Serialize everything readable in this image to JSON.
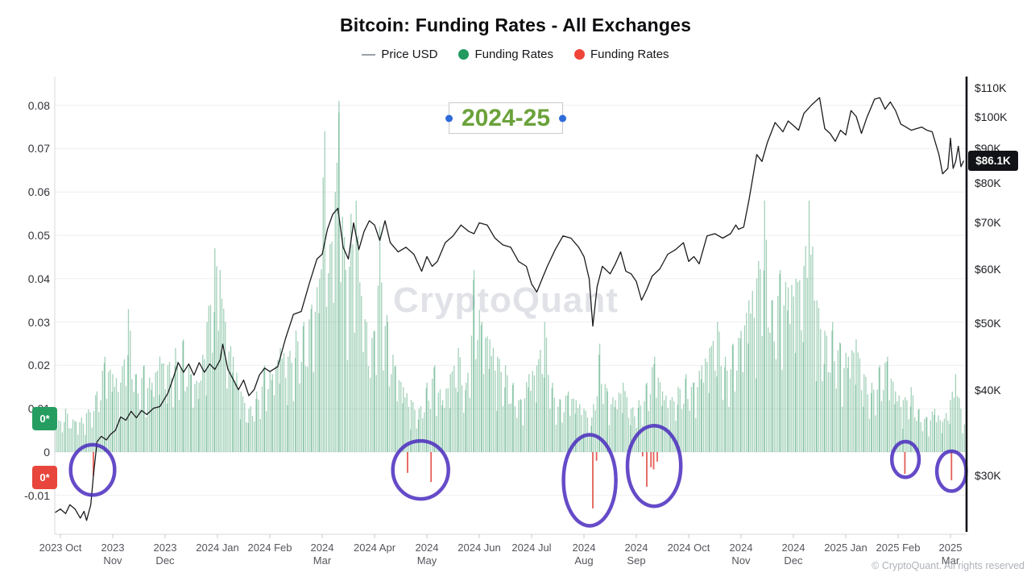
{
  "title": "Bitcoin: Funding Rates - All Exchanges",
  "legend": {
    "price": {
      "label": "Price USD",
      "color": "#9aa0a6"
    },
    "funding_pos": {
      "label": "Funding Rates",
      "color": "#21995f"
    },
    "funding_neg": {
      "label": "Funding Rates",
      "color": "#ef4438"
    }
  },
  "watermark": "CryptoQuant",
  "copyright": "© CryptoQuant. All rights reserved",
  "annotation": {
    "label": "2024-25",
    "text_color": "#6ba23b",
    "handle_color": "#2e6bd8"
  },
  "badges": {
    "green_axis": {
      "label": "0*",
      "color": "#259d61"
    },
    "red_axis": {
      "label": "0*",
      "color": "#e8453c"
    },
    "price": {
      "label": "$86.1K"
    }
  },
  "colors": {
    "bar_positive": "rgba(49,154,99,0.45)",
    "bar_negative": "rgba(225,77,66,0.9)",
    "price_line": "#1a1b1e",
    "ellipse": "#4a2bbe",
    "grid": "#efeff2",
    "spine": "#d9d9de",
    "axis_black": "#121316"
  },
  "chart_data": {
    "type": "mixed",
    "title": "Bitcoin: Funding Rates - All Exchanges",
    "x_unit": "months since 2023-10 tick",
    "x_tick_labels": [
      "2023 Oct",
      "2023\nNov",
      "2023\nDec",
      "2024 Jan",
      "2024 Feb",
      "2024\nMar",
      "2024 Apr",
      "2024\nMay",
      "2024 Jun",
      "2024 Jul",
      "2024\nAug",
      "2024\nSep",
      "2024 Oct",
      "2024\nNov",
      "2024\nDec",
      "2025 Jan",
      "2025 Feb",
      "2025\nMar"
    ],
    "left_axis": {
      "label": "Funding Rates",
      "ticks": [
        0.08,
        0.07,
        0.06,
        0.05,
        0.04,
        0.03,
        0.02,
        0.01,
        0,
        -0.01
      ],
      "range": [
        -0.015,
        0.0865
      ]
    },
    "right_axis": {
      "label": "Price USD",
      "scale": "log",
      "ticks_k": [
        110,
        100,
        90,
        80,
        70,
        60,
        50,
        40,
        30
      ],
      "last_value_k": 86.1
    },
    "price_usd_k": [
      [
        -0.1,
        26.5
      ],
      [
        0.0,
        26.8
      ],
      [
        0.1,
        26.4
      ],
      [
        0.18,
        27.2
      ],
      [
        0.28,
        26.8
      ],
      [
        0.38,
        26.0
      ],
      [
        0.45,
        26.6
      ],
      [
        0.5,
        25.8
      ],
      [
        0.58,
        27.2
      ],
      [
        0.63,
        30.0
      ],
      [
        0.7,
        33.6
      ],
      [
        0.78,
        34.2
      ],
      [
        0.88,
        33.8
      ],
      [
        0.95,
        34.4
      ],
      [
        1.05,
        34.9
      ],
      [
        1.15,
        36.5
      ],
      [
        1.25,
        36.1
      ],
      [
        1.35,
        37.2
      ],
      [
        1.45,
        36.4
      ],
      [
        1.55,
        37.3
      ],
      [
        1.65,
        36.8
      ],
      [
        1.78,
        37.6
      ],
      [
        1.9,
        37.8
      ],
      [
        2.05,
        39.5
      ],
      [
        2.15,
        41.5
      ],
      [
        2.25,
        43.8
      ],
      [
        2.35,
        42.4
      ],
      [
        2.45,
        43.6
      ],
      [
        2.55,
        42.0
      ],
      [
        2.65,
        43.8
      ],
      [
        2.75,
        42.4
      ],
      [
        2.85,
        43.6
      ],
      [
        2.95,
        42.8
      ],
      [
        3.05,
        44.2
      ],
      [
        3.1,
        46.6
      ],
      [
        3.2,
        42.8
      ],
      [
        3.3,
        41.4
      ],
      [
        3.4,
        40.0
      ],
      [
        3.5,
        41.3
      ],
      [
        3.6,
        39.2
      ],
      [
        3.7,
        40.0
      ],
      [
        3.8,
        42.0
      ],
      [
        3.9,
        43.0
      ],
      [
        4.0,
        42.5
      ],
      [
        4.15,
        43.2
      ],
      [
        4.3,
        47.5
      ],
      [
        4.45,
        51.5
      ],
      [
        4.6,
        52.0
      ],
      [
        4.75,
        57.0
      ],
      [
        4.9,
        62.0
      ],
      [
        5.0,
        63.0
      ],
      [
        5.1,
        68.5
      ],
      [
        5.2,
        72.0
      ],
      [
        5.3,
        73.5
      ],
      [
        5.4,
        64.5
      ],
      [
        5.5,
        62.0
      ],
      [
        5.6,
        70.0
      ],
      [
        5.7,
        64.0
      ],
      [
        5.8,
        68.0
      ],
      [
        5.9,
        70.5
      ],
      [
        6.0,
        69.5
      ],
      [
        6.1,
        66.0
      ],
      [
        6.2,
        70.5
      ],
      [
        6.3,
        65.5
      ],
      [
        6.45,
        63.5
      ],
      [
        6.6,
        64.5
      ],
      [
        6.75,
        63.0
      ],
      [
        6.9,
        59.5
      ],
      [
        7.0,
        62.5
      ],
      [
        7.1,
        60.5
      ],
      [
        7.2,
        61.5
      ],
      [
        7.35,
        65.5
      ],
      [
        7.5,
        67.0
      ],
      [
        7.65,
        69.5
      ],
      [
        7.8,
        68.0
      ],
      [
        7.9,
        67.5
      ],
      [
        8.0,
        70.0
      ],
      [
        8.15,
        69.5
      ],
      [
        8.3,
        66.5
      ],
      [
        8.45,
        65.0
      ],
      [
        8.6,
        64.5
      ],
      [
        8.75,
        61.5
      ],
      [
        8.9,
        60.5
      ],
      [
        9.0,
        57.0
      ],
      [
        9.1,
        55.5
      ],
      [
        9.2,
        58.0
      ],
      [
        9.3,
        60.5
      ],
      [
        9.45,
        64.0
      ],
      [
        9.6,
        67.0
      ],
      [
        9.75,
        66.5
      ],
      [
        9.9,
        64.5
      ],
      [
        10.0,
        62.5
      ],
      [
        10.1,
        58.0
      ],
      [
        10.17,
        49.5
      ],
      [
        10.25,
        56.5
      ],
      [
        10.35,
        60.5
      ],
      [
        10.5,
        59.0
      ],
      [
        10.6,
        61.0
      ],
      [
        10.7,
        63.5
      ],
      [
        10.8,
        59.5
      ],
      [
        10.9,
        59.0
      ],
      [
        11.0,
        57.5
      ],
      [
        11.1,
        54.0
      ],
      [
        11.2,
        56.0
      ],
      [
        11.3,
        58.5
      ],
      [
        11.45,
        60.0
      ],
      [
        11.6,
        63.0
      ],
      [
        11.75,
        64.0
      ],
      [
        11.9,
        65.5
      ],
      [
        12.0,
        61.5
      ],
      [
        12.1,
        62.5
      ],
      [
        12.2,
        61.0
      ],
      [
        12.35,
        67.0
      ],
      [
        12.5,
        67.5
      ],
      [
        12.65,
        66.5
      ],
      [
        12.8,
        67.5
      ],
      [
        12.9,
        69.5
      ],
      [
        12.95,
        68.5
      ],
      [
        13.05,
        69.0
      ],
      [
        13.15,
        75.5
      ],
      [
        13.3,
        88.0
      ],
      [
        13.4,
        86.0
      ],
      [
        13.5,
        91.5
      ],
      [
        13.65,
        98.0
      ],
      [
        13.8,
        95.0
      ],
      [
        13.9,
        98.5
      ],
      [
        14.0,
        97.0
      ],
      [
        14.1,
        95.5
      ],
      [
        14.2,
        101.0
      ],
      [
        14.35,
        104.0
      ],
      [
        14.5,
        106.5
      ],
      [
        14.6,
        96.0
      ],
      [
        14.7,
        94.5
      ],
      [
        14.8,
        92.0
      ],
      [
        14.9,
        95.5
      ],
      [
        15.0,
        94.0
      ],
      [
        15.1,
        102.0
      ],
      [
        15.2,
        100.0
      ],
      [
        15.3,
        94.5
      ],
      [
        15.4,
        99.5
      ],
      [
        15.55,
        106.0
      ],
      [
        15.65,
        106.5
      ],
      [
        15.75,
        102.5
      ],
      [
        15.85,
        105.0
      ],
      [
        15.95,
        102.0
      ],
      [
        16.05,
        97.5
      ],
      [
        16.15,
        96.5
      ],
      [
        16.25,
        95.5
      ],
      [
        16.35,
        96.0
      ],
      [
        16.45,
        96.5
      ],
      [
        16.55,
        95.5
      ],
      [
        16.65,
        95.0
      ],
      [
        16.78,
        88.0
      ],
      [
        16.85,
        82.5
      ],
      [
        16.95,
        84.0
      ],
      [
        17.0,
        93.0
      ],
      [
        17.05,
        84.0
      ],
      [
        17.1,
        86.0
      ],
      [
        17.15,
        90.5
      ],
      [
        17.2,
        84.5
      ],
      [
        17.25,
        86.1
      ]
    ],
    "funding_rate_envelope": [
      [
        -0.1,
        0.006
      ],
      [
        0.1,
        0.01
      ],
      [
        0.3,
        0.007
      ],
      [
        0.5,
        0.009
      ],
      [
        0.7,
        0.014
      ],
      [
        0.85,
        0.022
      ],
      [
        1.0,
        0.018
      ],
      [
        1.15,
        0.016
      ],
      [
        1.3,
        0.033
      ],
      [
        1.45,
        0.018
      ],
      [
        1.6,
        0.02
      ],
      [
        1.75,
        0.016
      ],
      [
        1.9,
        0.022
      ],
      [
        2.05,
        0.02
      ],
      [
        2.2,
        0.024
      ],
      [
        2.35,
        0.026
      ],
      [
        2.5,
        0.018
      ],
      [
        2.65,
        0.016
      ],
      [
        2.8,
        0.03
      ],
      [
        2.95,
        0.047
      ],
      [
        3.05,
        0.042
      ],
      [
        3.15,
        0.03
      ],
      [
        3.3,
        0.022
      ],
      [
        3.45,
        0.014
      ],
      [
        3.6,
        0.01
      ],
      [
        3.75,
        0.014
      ],
      [
        3.9,
        0.02
      ],
      [
        4.05,
        0.018
      ],
      [
        4.2,
        0.024
      ],
      [
        4.35,
        0.022
      ],
      [
        4.5,
        0.028
      ],
      [
        4.65,
        0.03
      ],
      [
        4.8,
        0.034
      ],
      [
        4.95,
        0.04
      ],
      [
        5.05,
        0.074
      ],
      [
        5.15,
        0.048
      ],
      [
        5.25,
        0.06
      ],
      [
        5.32,
        0.081
      ],
      [
        5.45,
        0.042
      ],
      [
        5.55,
        0.055
      ],
      [
        5.65,
        0.058
      ],
      [
        5.75,
        0.036
      ],
      [
        5.85,
        0.03
      ],
      [
        6.0,
        0.028
      ],
      [
        6.1,
        0.052
      ],
      [
        6.25,
        0.03
      ],
      [
        6.4,
        0.02
      ],
      [
        6.55,
        0.015
      ],
      [
        6.7,
        0.012
      ],
      [
        6.85,
        0.01
      ],
      [
        7.0,
        0.016
      ],
      [
        7.15,
        0.02
      ],
      [
        7.3,
        0.012
      ],
      [
        7.45,
        0.018
      ],
      [
        7.6,
        0.024
      ],
      [
        7.75,
        0.016
      ],
      [
        7.9,
        0.042
      ],
      [
        8.05,
        0.03
      ],
      [
        8.2,
        0.026
      ],
      [
        8.35,
        0.022
      ],
      [
        8.5,
        0.02
      ],
      [
        8.65,
        0.016
      ],
      [
        8.8,
        0.012
      ],
      [
        8.95,
        0.018
      ],
      [
        9.1,
        0.02
      ],
      [
        9.25,
        0.03
      ],
      [
        9.4,
        0.016
      ],
      [
        9.55,
        0.012
      ],
      [
        9.7,
        0.014
      ],
      [
        9.85,
        0.012
      ],
      [
        10.0,
        0.01
      ],
      [
        10.15,
        0.008
      ],
      [
        10.3,
        0.025
      ],
      [
        10.45,
        0.014
      ],
      [
        10.6,
        0.012
      ],
      [
        10.75,
        0.016
      ],
      [
        10.9,
        0.01
      ],
      [
        11.05,
        0.012
      ],
      [
        11.2,
        0.016
      ],
      [
        11.35,
        0.022
      ],
      [
        11.5,
        0.014
      ],
      [
        11.65,
        0.012
      ],
      [
        11.8,
        0.015
      ],
      [
        11.95,
        0.018
      ],
      [
        12.1,
        0.016
      ],
      [
        12.25,
        0.02
      ],
      [
        12.4,
        0.024
      ],
      [
        12.55,
        0.03
      ],
      [
        12.7,
        0.022
      ],
      [
        12.85,
        0.025
      ],
      [
        13.0,
        0.028
      ],
      [
        13.15,
        0.035
      ],
      [
        13.3,
        0.04
      ],
      [
        13.45,
        0.058
      ],
      [
        13.6,
        0.035
      ],
      [
        13.75,
        0.042
      ],
      [
        13.9,
        0.038
      ],
      [
        14.05,
        0.04
      ],
      [
        14.2,
        0.043
      ],
      [
        14.3,
        0.058
      ],
      [
        14.45,
        0.035
      ],
      [
        14.6,
        0.028
      ],
      [
        14.75,
        0.03
      ],
      [
        14.9,
        0.025
      ],
      [
        15.05,
        0.022
      ],
      [
        15.2,
        0.026
      ],
      [
        15.35,
        0.018
      ],
      [
        15.5,
        0.016
      ],
      [
        15.65,
        0.02
      ],
      [
        15.8,
        0.022
      ],
      [
        15.95,
        0.014
      ],
      [
        16.1,
        0.012
      ],
      [
        16.25,
        0.015
      ],
      [
        16.4,
        0.01
      ],
      [
        16.55,
        0.008
      ],
      [
        16.7,
        0.01
      ],
      [
        16.85,
        0.007
      ],
      [
        17.0,
        0.012
      ],
      [
        17.1,
        0.018
      ],
      [
        17.2,
        0.01
      ],
      [
        17.28,
        0.008
      ]
    ],
    "negative_funding_events": [
      [
        0.63,
        -0.0055
      ],
      [
        6.63,
        -0.0048
      ],
      [
        7.08,
        -0.0069
      ],
      [
        10.17,
        -0.013
      ],
      [
        10.24,
        -0.002
      ],
      [
        11.12,
        -0.001
      ],
      [
        11.2,
        -0.008
      ],
      [
        11.28,
        -0.0035
      ],
      [
        11.33,
        -0.004
      ],
      [
        11.4,
        -0.0022
      ],
      [
        16.13,
        -0.005
      ],
      [
        17.02,
        -0.0065
      ]
    ],
    "highlight_ellipses": [
      {
        "m": 0.615,
        "rate": -0.0041,
        "rx_m": 0.42,
        "ry_rate": 0.0058
      },
      {
        "m": 6.88,
        "rate": -0.0041,
        "rx_m": 0.53,
        "ry_rate": 0.0067
      },
      {
        "m": 10.11,
        "rate": -0.0065,
        "rx_m": 0.5,
        "ry_rate": 0.0105
      },
      {
        "m": 11.34,
        "rate": -0.0032,
        "rx_m": 0.51,
        "ry_rate": 0.0093
      },
      {
        "m": 16.14,
        "rate": -0.0017,
        "rx_m": 0.26,
        "ry_rate": 0.0041
      },
      {
        "m": 17.02,
        "rate": -0.0044,
        "rx_m": 0.28,
        "ry_rate": 0.0046
      }
    ],
    "annotation_label": "2024-25",
    "grid": true,
    "legend_position": "top"
  }
}
